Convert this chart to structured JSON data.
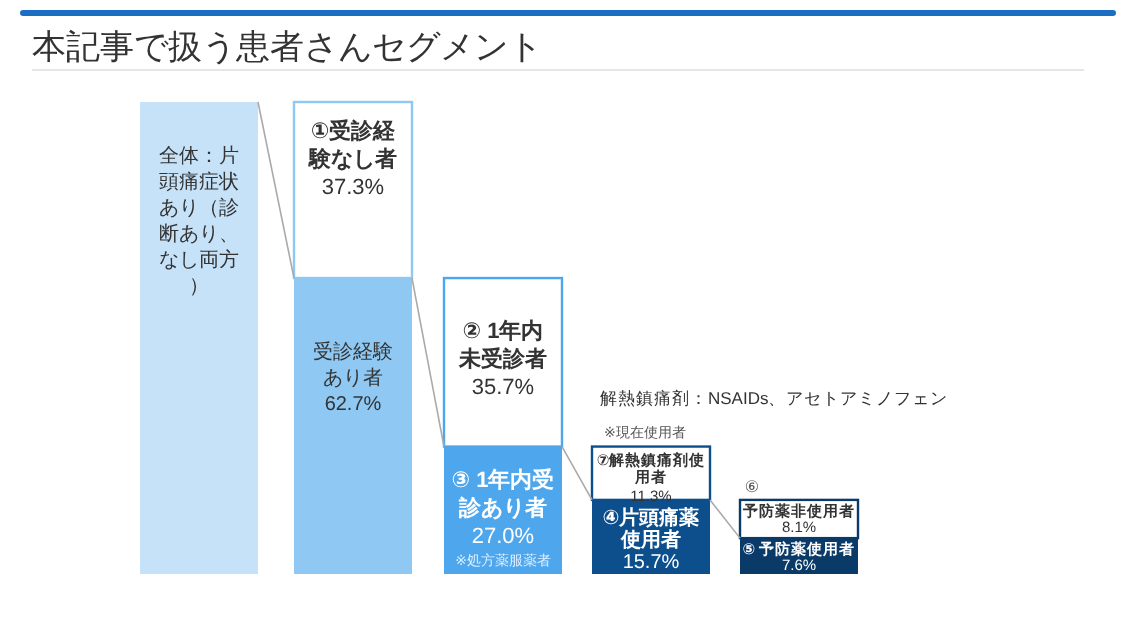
{
  "chart_data": {
    "type": "bar",
    "stacked": true,
    "title": "本記事で扱う患者さんセグメント",
    "categories": [
      null,
      null,
      null,
      null,
      null
    ],
    "series": [
      {
        "colors": [
          "#c6e2f8",
          "#8ec8f3",
          "#4ea6ec",
          "#0d4f8c",
          "#0a3a68"
        ],
        "values": [
          100,
          62.7,
          27.0,
          15.7,
          7.6
        ],
        "value_labels": [
          null,
          "62.7%",
          "27.0%",
          "15.7%",
          "7.6%"
        ]
      },
      {
        "colors": [
          null,
          "#ffffff",
          "#ffffff",
          "#ffffff",
          "#ffffff"
        ],
        "values": [
          null,
          37.3,
          35.7,
          11.3,
          8.1
        ],
        "value_labels": [
          null,
          "37.3%",
          "35.7%",
          "11.3%",
          "8.1%"
        ]
      }
    ],
    "annotations": [
      "全体：片頭痛症状あり（診断あり、なし両方）",
      "①受診経験なし者",
      "受診経験あり者",
      "② 1年内未受診者",
      "③ 1年内受診あり者",
      "※処方薬服薬者",
      "⑦解熱鎮痛剤使用者",
      "④片頭痛薬使用者",
      "⑥",
      "予防薬非使用者",
      "⑤ 予防薬使用者",
      "解熱鎮痛剤：NSAIDs、アセトアミノフェン",
      "※現在使用者"
    ]
  }
}
